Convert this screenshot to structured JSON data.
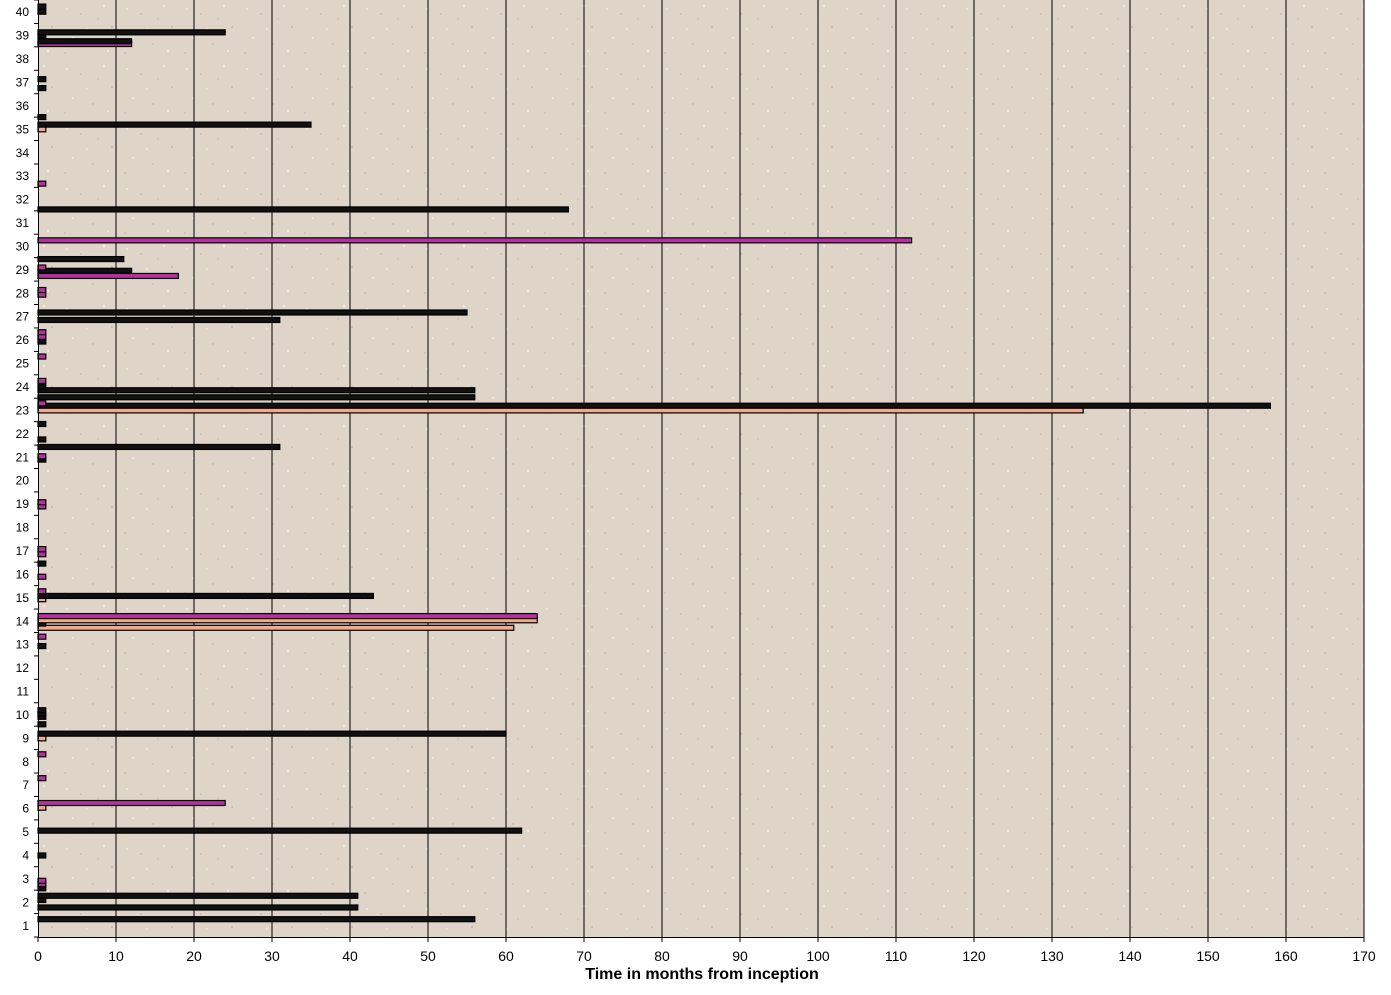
{
  "colors": {
    "plot_bg": "#ded5c8",
    "texture_light": "#efe8dc",
    "texture_dark": "#bdb09e",
    "grid": "#000000",
    "bar_outline": "#000000",
    "bar_magenta": "#b4329f",
    "bar_salmon": "#f2a98e"
  },
  "chart_data": {
    "type": "bar",
    "orientation": "horizontal",
    "title": "",
    "xlabel": "Time in months from inception",
    "ylabel": "",
    "xlim": [
      0,
      170
    ],
    "x_ticks": [
      0,
      10,
      20,
      30,
      40,
      50,
      60,
      70,
      80,
      90,
      100,
      110,
      120,
      130,
      140,
      150,
      160,
      170
    ],
    "ylim": [
      0.5,
      40.5
    ],
    "categories": [
      "1",
      "2",
      "3",
      "4",
      "5",
      "6",
      "7",
      "8",
      "9",
      "10",
      "11",
      "12",
      "13",
      "14",
      "15",
      "16",
      "17",
      "18",
      "19",
      "20",
      "21",
      "22",
      "23",
      "24",
      "25",
      "26",
      "27",
      "28",
      "29",
      "30",
      "31",
      "32",
      "33",
      "34",
      "35",
      "36",
      "37",
      "38",
      "39",
      "40"
    ],
    "grid": true,
    "legend": "none",
    "bars": [
      {
        "y": 1.26,
        "value": 56,
        "fill": "black"
      },
      {
        "y": 1.76,
        "value": 41,
        "fill": "black"
      },
      {
        "y": 2.08,
        "value": 1,
        "fill": "black"
      },
      {
        "y": 2.26,
        "value": 41,
        "fill": "black"
      },
      {
        "y": 2.58,
        "value": 1,
        "fill": "black"
      },
      {
        "y": 2.76,
        "value": 1,
        "fill": "magenta"
      },
      {
        "y": 2.9,
        "value": 1,
        "fill": "magenta"
      },
      {
        "y": 3.98,
        "value": 1,
        "fill": "black"
      },
      {
        "y": 5.04,
        "value": 62,
        "fill": "black"
      },
      {
        "y": 6.02,
        "value": 1,
        "fill": "salmon"
      },
      {
        "y": 6.22,
        "value": 24,
        "fill": "magenta"
      },
      {
        "y": 7.28,
        "value": 1,
        "fill": "magenta"
      },
      {
        "y": 8.3,
        "value": 1,
        "fill": "magenta"
      },
      {
        "y": 8.98,
        "value": 1,
        "fill": "salmon"
      },
      {
        "y": 9.18,
        "value": 60,
        "fill": "black"
      },
      {
        "y": 9.58,
        "value": 1,
        "fill": "black"
      },
      {
        "y": 9.9,
        "value": 1,
        "fill": "black"
      },
      {
        "y": 10.04,
        "value": 1,
        "fill": "black"
      },
      {
        "y": 10.18,
        "value": 1,
        "fill": "black"
      },
      {
        "y": 12.92,
        "value": 1,
        "fill": "black"
      },
      {
        "y": 13.32,
        "value": 1,
        "fill": "magenta"
      },
      {
        "y": 13.7,
        "value": 61,
        "fill": "salmon"
      },
      {
        "y": 13.88,
        "value": 1,
        "fill": "black"
      },
      {
        "y": 14.02,
        "value": 64,
        "fill": "salmon"
      },
      {
        "y": 14.2,
        "value": 64,
        "fill": "magenta"
      },
      {
        "y": 14.92,
        "value": 1,
        "fill": "salmon"
      },
      {
        "y": 15.06,
        "value": 43,
        "fill": "black"
      },
      {
        "y": 15.26,
        "value": 1,
        "fill": "magenta"
      },
      {
        "y": 15.88,
        "value": 1,
        "fill": "magenta"
      },
      {
        "y": 16.44,
        "value": 1,
        "fill": "black"
      },
      {
        "y": 16.84,
        "value": 1,
        "fill": "magenta"
      },
      {
        "y": 17.06,
        "value": 1,
        "fill": "magenta"
      },
      {
        "y": 18.88,
        "value": 1,
        "fill": "magenta"
      },
      {
        "y": 19.06,
        "value": 1,
        "fill": "magenta"
      },
      {
        "y": 20.88,
        "value": 1,
        "fill": "black"
      },
      {
        "y": 21.02,
        "value": 1,
        "fill": "magenta"
      },
      {
        "y": 21.42,
        "value": 31,
        "fill": "black"
      },
      {
        "y": 21.74,
        "value": 1,
        "fill": "black"
      },
      {
        "y": 22.4,
        "value": 1,
        "fill": "black"
      },
      {
        "y": 22.98,
        "value": 134,
        "fill": "salmon"
      },
      {
        "y": 23.18,
        "value": 158,
        "fill": "black"
      },
      {
        "y": 23.28,
        "value": 1,
        "fill": "magenta"
      },
      {
        "y": 23.54,
        "value": 56,
        "fill": "black"
      },
      {
        "y": 23.84,
        "value": 56,
        "fill": "black"
      },
      {
        "y": 24.0,
        "value": 1,
        "fill": "black"
      },
      {
        "y": 24.24,
        "value": 1,
        "fill": "magenta"
      },
      {
        "y": 25.28,
        "value": 1,
        "fill": "magenta"
      },
      {
        "y": 25.92,
        "value": 1,
        "fill": "black"
      },
      {
        "y": 26.12,
        "value": 1,
        "fill": "magenta"
      },
      {
        "y": 26.32,
        "value": 1,
        "fill": "magenta"
      },
      {
        "y": 26.84,
        "value": 31,
        "fill": "black"
      },
      {
        "y": 27.16,
        "value": 55,
        "fill": "black"
      },
      {
        "y": 27.92,
        "value": 1,
        "fill": "magenta"
      },
      {
        "y": 28.12,
        "value": 1,
        "fill": "magenta"
      },
      {
        "y": 28.72,
        "value": 18,
        "fill": "magenta"
      },
      {
        "y": 28.94,
        "value": 12,
        "fill": "black"
      },
      {
        "y": 29.08,
        "value": 1,
        "fill": "magenta"
      },
      {
        "y": 29.44,
        "value": 11,
        "fill": "black"
      },
      {
        "y": 30.24,
        "value": 112,
        "fill": "magenta"
      },
      {
        "y": 31.56,
        "value": 68,
        "fill": "black"
      },
      {
        "y": 32.66,
        "value": 1,
        "fill": "magenta"
      },
      {
        "y": 34.98,
        "value": 1,
        "fill": "salmon"
      },
      {
        "y": 35.18,
        "value": 35,
        "fill": "black"
      },
      {
        "y": 35.5,
        "value": 1,
        "fill": "black"
      },
      {
        "y": 36.74,
        "value": 1,
        "fill": "black"
      },
      {
        "y": 37.12,
        "value": 1,
        "fill": "black"
      },
      {
        "y": 38.62,
        "value": 12,
        "fill": "magenta"
      },
      {
        "y": 38.74,
        "value": 12,
        "fill": "black"
      },
      {
        "y": 38.98,
        "value": 1,
        "fill": "black"
      },
      {
        "y": 39.12,
        "value": 24,
        "fill": "black"
      },
      {
        "y": 40.0,
        "value": 1,
        "fill": "black"
      },
      {
        "y": 40.22,
        "value": 1,
        "fill": "black"
      }
    ]
  }
}
